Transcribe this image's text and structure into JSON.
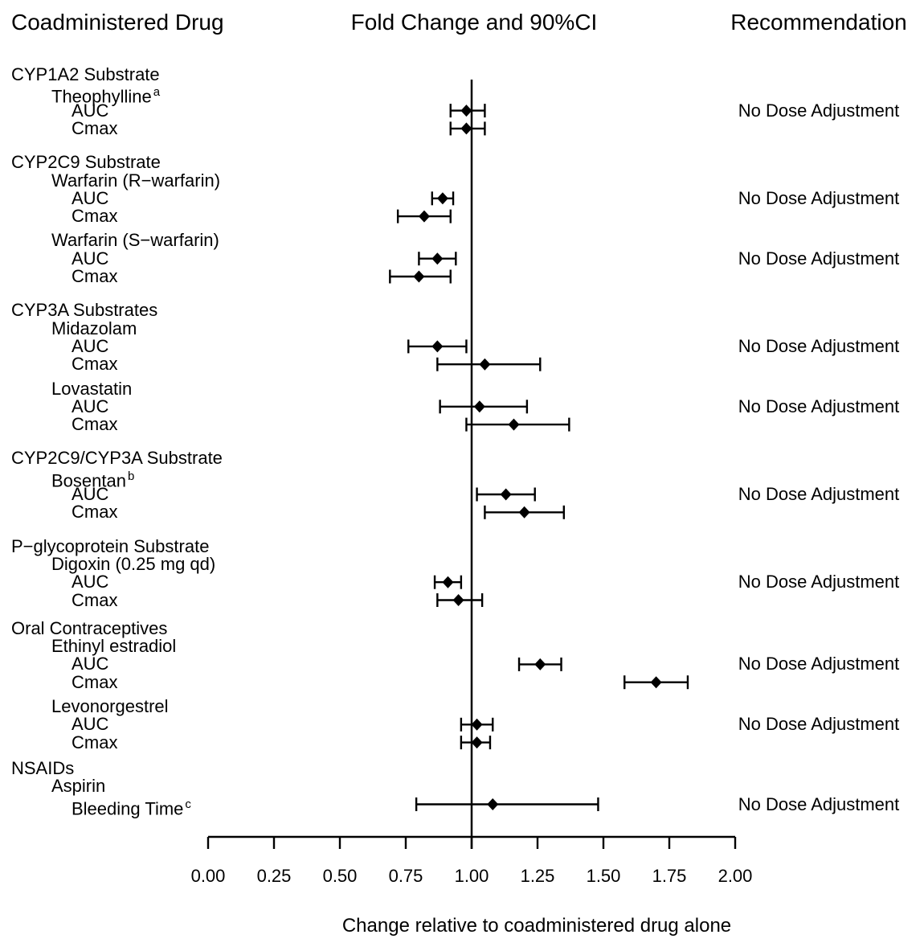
{
  "title_row": {
    "left": "Coadministered Drug",
    "center": "Fold Change and 90%CI",
    "right": "Recommendation"
  },
  "chart_data": {
    "type": "forest",
    "xlabel": "Change relative to coadministered drug alone",
    "xlim": [
      0,
      2
    ],
    "x_ticks": [
      0,
      0.25,
      0.5,
      0.75,
      1,
      1.25,
      1.5,
      1.75,
      2
    ],
    "x_tick_labels": [
      "0.00",
      "0.25",
      "0.50",
      "0.75",
      "1.00",
      "1.25",
      "1.50",
      "1.75",
      "2.00"
    ],
    "reference_line": 1.0,
    "ci_level": "90%",
    "marker_color": "#000000",
    "sections": [
      {
        "section": "CYP1A2 Substrate",
        "drugs": [
          {
            "name": "Theophylline",
            "footnote": "a",
            "recommendation": "No Dose Adjustment",
            "rows": [
              {
                "metric": "AUC",
                "estimate": 0.98,
                "ci_low": 0.92,
                "ci_high": 1.05
              },
              {
                "metric": "Cmax",
                "estimate": 0.98,
                "ci_low": 0.92,
                "ci_high": 1.05
              }
            ]
          }
        ]
      },
      {
        "section": "CYP2C9 Substrate",
        "drugs": [
          {
            "name": "Warfarin (R−warfarin)",
            "recommendation": "No Dose Adjustment",
            "rows": [
              {
                "metric": "AUC",
                "estimate": 0.89,
                "ci_low": 0.85,
                "ci_high": 0.93
              },
              {
                "metric": "Cmax",
                "estimate": 0.82,
                "ci_low": 0.72,
                "ci_high": 0.92
              }
            ]
          },
          {
            "name": "Warfarin (S−warfarin)",
            "recommendation": "No Dose Adjustment",
            "rows": [
              {
                "metric": "AUC",
                "estimate": 0.87,
                "ci_low": 0.8,
                "ci_high": 0.94
              },
              {
                "metric": "Cmax",
                "estimate": 0.8,
                "ci_low": 0.69,
                "ci_high": 0.92
              }
            ]
          }
        ]
      },
      {
        "section": "CYP3A Substrates",
        "drugs": [
          {
            "name": "Midazolam",
            "recommendation": "No Dose Adjustment",
            "rows": [
              {
                "metric": "AUC",
                "estimate": 0.87,
                "ci_low": 0.76,
                "ci_high": 0.98
              },
              {
                "metric": "Cmax",
                "estimate": 1.05,
                "ci_low": 0.87,
                "ci_high": 1.26
              }
            ]
          },
          {
            "name": "Lovastatin",
            "recommendation": "No Dose Adjustment",
            "rows": [
              {
                "metric": "AUC",
                "estimate": 1.03,
                "ci_low": 0.88,
                "ci_high": 1.21
              },
              {
                "metric": "Cmax",
                "estimate": 1.16,
                "ci_low": 0.98,
                "ci_high": 1.37
              }
            ]
          }
        ]
      },
      {
        "section": "CYP2C9/CYP3A Substrate",
        "drugs": [
          {
            "name": "Bosentan",
            "footnote": "b",
            "recommendation": "No Dose Adjustment",
            "rows": [
              {
                "metric": "AUC",
                "estimate": 1.13,
                "ci_low": 1.02,
                "ci_high": 1.24
              },
              {
                "metric": "Cmax",
                "estimate": 1.2,
                "ci_low": 1.05,
                "ci_high": 1.35
              }
            ]
          }
        ]
      },
      {
        "section": "P−glycoprotein Substrate",
        "drugs": [
          {
            "name": "Digoxin (0.25 mg qd)",
            "recommendation": "No Dose Adjustment",
            "rows": [
              {
                "metric": "AUC",
                "estimate": 0.91,
                "ci_low": 0.86,
                "ci_high": 0.96
              },
              {
                "metric": "Cmax",
                "estimate": 0.95,
                "ci_low": 0.87,
                "ci_high": 1.04
              }
            ]
          }
        ]
      },
      {
        "section": "Oral Contraceptives",
        "drugs": [
          {
            "name": "Ethinyl estradiol",
            "recommendation": "No Dose Adjustment",
            "rows": [
              {
                "metric": "AUC",
                "estimate": 1.26,
                "ci_low": 1.18,
                "ci_high": 1.34
              },
              {
                "metric": "Cmax",
                "estimate": 1.7,
                "ci_low": 1.58,
                "ci_high": 1.82
              }
            ]
          },
          {
            "name": "Levonorgestrel",
            "recommendation": "No Dose Adjustment",
            "rows": [
              {
                "metric": "AUC",
                "estimate": 1.02,
                "ci_low": 0.96,
                "ci_high": 1.08
              },
              {
                "metric": "Cmax",
                "estimate": 1.02,
                "ci_low": 0.96,
                "ci_high": 1.07
              }
            ]
          }
        ]
      },
      {
        "section": "NSAIDs",
        "drugs": [
          {
            "name": "Aspirin",
            "recommendation": "No Dose Adjustment",
            "rows": [
              {
                "metric": "Bleeding Time",
                "footnote": "c",
                "estimate": 1.08,
                "ci_low": 0.79,
                "ci_high": 1.48
              }
            ]
          }
        ]
      }
    ]
  }
}
